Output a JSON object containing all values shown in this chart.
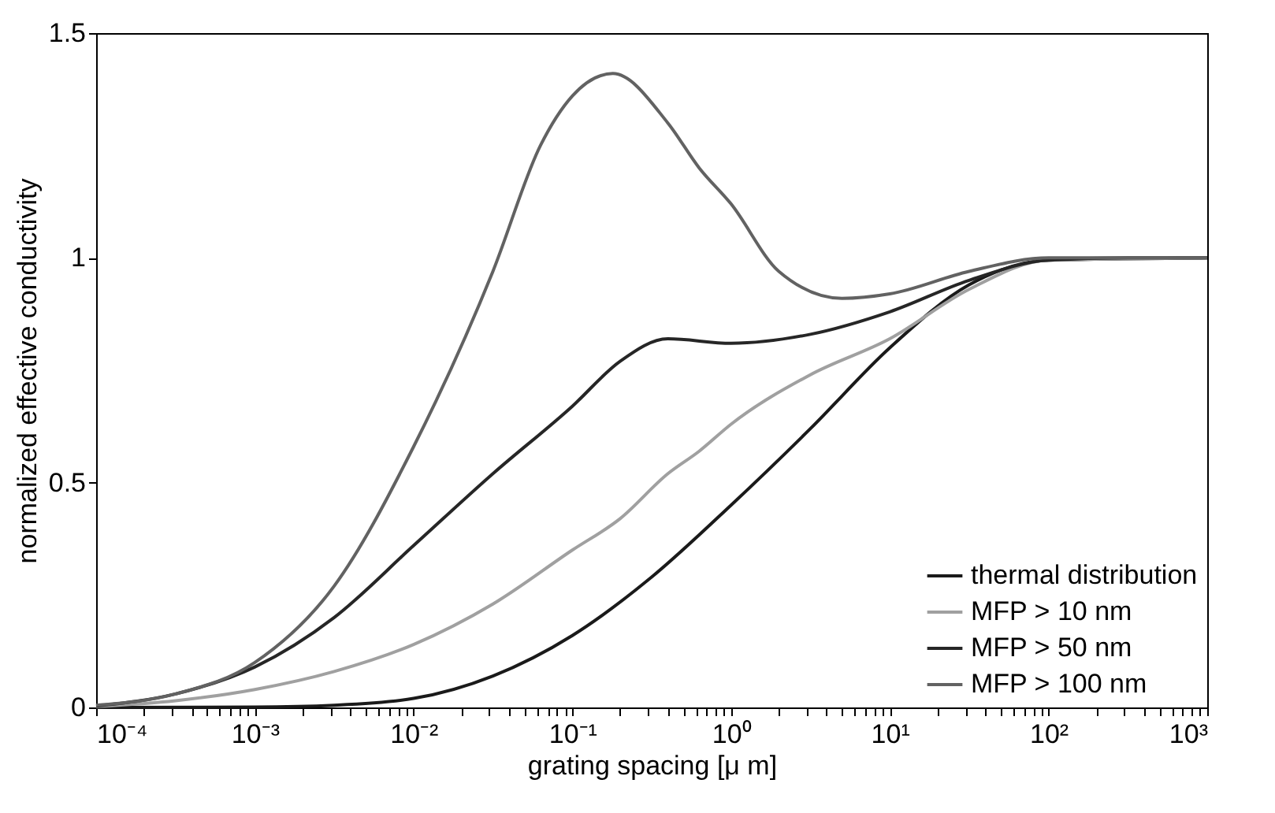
{
  "chart_data": {
    "type": "line",
    "xlabel": "grating spacing [μ m]",
    "ylabel": "normalized effective conductivity",
    "log": "x",
    "xlim": [
      0.0001,
      1000
    ],
    "ylim": [
      0,
      1.5
    ],
    "xticks": [
      {
        "value": 0.0001,
        "label": "10⁻⁴"
      },
      {
        "value": 0.001,
        "label": "10⁻³"
      },
      {
        "value": 0.01,
        "label": "10⁻²"
      },
      {
        "value": 0.1,
        "label": "10⁻¹"
      },
      {
        "value": 1,
        "label": "10⁰"
      },
      {
        "value": 10,
        "label": "10¹"
      },
      {
        "value": 100,
        "label": "10²"
      },
      {
        "value": 1000,
        "label": "10³"
      },
      {
        "value": 0.0002,
        "label": null
      },
      {
        "value": 0.0003,
        "label": null
      },
      {
        "value": 0.0004,
        "label": null
      },
      {
        "value": 0.0005,
        "label": null
      },
      {
        "value": 0.0006,
        "label": null
      },
      {
        "value": 0.0007,
        "label": null
      },
      {
        "value": 0.0008,
        "label": null
      },
      {
        "value": 0.0009,
        "label": null
      },
      {
        "value": 0.002,
        "label": null
      },
      {
        "value": 0.003,
        "label": null
      },
      {
        "value": 0.004,
        "label": null
      },
      {
        "value": 0.005,
        "label": null
      },
      {
        "value": 0.006,
        "label": null
      },
      {
        "value": 0.007,
        "label": null
      },
      {
        "value": 0.008,
        "label": null
      },
      {
        "value": 0.009,
        "label": null
      },
      {
        "value": 0.02,
        "label": null
      },
      {
        "value": 0.03,
        "label": null
      },
      {
        "value": 0.04,
        "label": null
      },
      {
        "value": 0.05,
        "label": null
      },
      {
        "value": 0.06,
        "label": null
      },
      {
        "value": 0.07,
        "label": null
      },
      {
        "value": 0.08,
        "label": null
      },
      {
        "value": 0.09,
        "label": null
      },
      {
        "value": 0.2,
        "label": null
      },
      {
        "value": 0.3,
        "label": null
      },
      {
        "value": 0.4,
        "label": null
      },
      {
        "value": 0.5,
        "label": null
      },
      {
        "value": 0.6,
        "label": null
      },
      {
        "value": 0.7,
        "label": null
      },
      {
        "value": 0.8,
        "label": null
      },
      {
        "value": 0.9,
        "label": null
      },
      {
        "value": 2,
        "label": null
      },
      {
        "value": 3,
        "label": null
      },
      {
        "value": 4,
        "label": null
      },
      {
        "value": 5,
        "label": null
      },
      {
        "value": 6,
        "label": null
      },
      {
        "value": 7,
        "label": null
      },
      {
        "value": 8,
        "label": null
      },
      {
        "value": 9,
        "label": null
      },
      {
        "value": 20,
        "label": null
      },
      {
        "value": 30,
        "label": null
      },
      {
        "value": 40,
        "label": null
      },
      {
        "value": 50,
        "label": null
      },
      {
        "value": 60,
        "label": null
      },
      {
        "value": 70,
        "label": null
      },
      {
        "value": 80,
        "label": null
      },
      {
        "value": 90,
        "label": null
      },
      {
        "value": 200,
        "label": null
      },
      {
        "value": 300,
        "label": null
      },
      {
        "value": 400,
        "label": null
      },
      {
        "value": 500,
        "label": null
      },
      {
        "value": 600,
        "label": null
      },
      {
        "value": 700,
        "label": null
      },
      {
        "value": 800,
        "label": null
      },
      {
        "value": 900,
        "label": null
      }
    ],
    "yticks": [
      0,
      0.5,
      1,
      1.5
    ],
    "grid": false,
    "legend": "bottom right",
    "line_style": "solid",
    "marker": "none",
    "series": [
      {
        "name": "thermal distribution",
        "color": "#1a1a1a",
        "x": [
          0.0001,
          0.001,
          0.00316,
          0.01,
          0.0316,
          0.1,
          0.316,
          1,
          3.16,
          10,
          31.6,
          100,
          1000
        ],
        "values": [
          0,
          0.001,
          0.005,
          0.02,
          0.07,
          0.16,
          0.29,
          0.45,
          0.62,
          0.8,
          0.94,
          0.995,
          1
        ]
      },
      {
        "name": "MFP > 10 nm",
        "color": "#a0a0a0",
        "x": [
          0.0001,
          0.000316,
          0.001,
          0.00316,
          0.01,
          0.0316,
          0.1,
          0.2,
          0.4,
          0.63,
          1,
          3.16,
          10,
          31.6,
          100,
          1000
        ],
        "values": [
          0.002,
          0.015,
          0.04,
          0.08,
          0.14,
          0.23,
          0.35,
          0.42,
          0.52,
          0.57,
          0.63,
          0.74,
          0.82,
          0.93,
          0.995,
          1
        ]
      },
      {
        "name": "MFP > 50 nm",
        "color": "#262626",
        "x": [
          0.0001,
          0.000316,
          0.001,
          0.00316,
          0.01,
          0.0316,
          0.1,
          0.2,
          0.4,
          1,
          3.16,
          10,
          31.6,
          100,
          316,
          1000
        ],
        "values": [
          0.003,
          0.03,
          0.09,
          0.2,
          0.36,
          0.52,
          0.67,
          0.77,
          0.82,
          0.81,
          0.83,
          0.88,
          0.95,
          0.995,
          1,
          1
        ]
      },
      {
        "name": "MFP > 100 nm",
        "color": "#626262",
        "x": [
          0.0001,
          0.000316,
          0.001,
          0.00316,
          0.01,
          0.0316,
          0.063,
          0.1,
          0.18,
          0.4,
          0.63,
          1,
          2,
          5,
          10,
          31.6,
          100,
          1000
        ],
        "values": [
          0.005,
          0.03,
          0.1,
          0.27,
          0.58,
          0.97,
          1.25,
          1.36,
          1.41,
          1.3,
          1.2,
          1.12,
          0.97,
          0.91,
          0.92,
          0.97,
          1,
          1
        ]
      }
    ]
  }
}
